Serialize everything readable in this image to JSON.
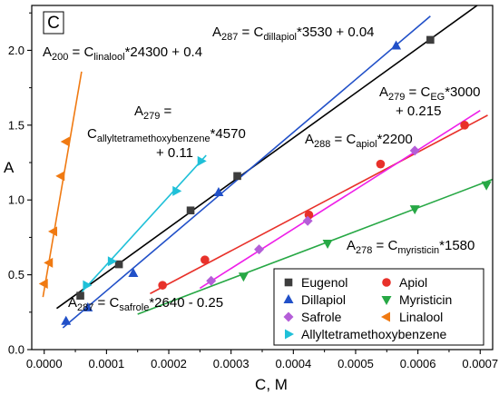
{
  "chart_data": {
    "type": "scatter",
    "panel_label": "C",
    "xlabel": "C, M",
    "ylabel": "A",
    "xlim": [
      -2e-05,
      0.00072
    ],
    "ylim": [
      0.0,
      2.3
    ],
    "x_ticks": [
      0.0,
      0.0001,
      0.0002,
      0.0003,
      0.0004,
      0.0005,
      0.0006,
      0.0007
    ],
    "x_tick_labels": [
      "0.0000",
      "0.0001",
      "0.0002",
      "0.0003",
      "0.0004",
      "0.0005",
      "0.0006",
      "0.0007"
    ],
    "y_ticks": [
      0.0,
      0.5,
      1.0,
      1.5,
      2.0
    ],
    "y_tick_labels": [
      "0.0",
      "0.5",
      "1.0",
      "1.5",
      "2.0"
    ],
    "grid": false,
    "legend_position": "bottom-right",
    "series": [
      {
        "name": "Eugenol",
        "marker": "square",
        "color": "#3d3d3d",
        "line_color": "#000000",
        "x": [
          5.8e-05,
          0.00012,
          0.000235,
          0.00031,
          0.00062
        ],
        "y": [
          0.36,
          0.57,
          0.93,
          1.16,
          2.07
        ],
        "fit": {
          "slope": 3000,
          "intercept": 0.215,
          "x_range": [
            2e-05,
            0.00072
          ]
        }
      },
      {
        "name": "Apiol",
        "marker": "circle",
        "color": "#e8312a",
        "line_color": "#e8312a",
        "x": [
          0.00019,
          0.000258,
          0.000425,
          0.00054,
          0.000675
        ],
        "y": [
          0.43,
          0.6,
          0.9,
          1.24,
          1.5
        ],
        "fit": {
          "slope": 2200,
          "intercept": 0.0,
          "x_range": [
            0.00017,
            0.000712
          ]
        }
      },
      {
        "name": "Dillapiol",
        "marker": "triangle-up",
        "color": "#2150c8",
        "line_color": "#2150c8",
        "x": [
          3.5e-05,
          7e-05,
          0.000143,
          0.00028,
          0.000565
        ],
        "y": [
          0.19,
          0.28,
          0.51,
          1.05,
          2.03
        ],
        "fit": {
          "slope": 3530,
          "intercept": 0.04,
          "x_range": [
            3e-05,
            0.00062
          ]
        }
      },
      {
        "name": "Myristicin",
        "marker": "triangle-down",
        "color": "#27a845",
        "line_color": "#27a845",
        "x": [
          0.00032,
          0.000455,
          0.000595,
          0.00071
        ],
        "y": [
          0.49,
          0.71,
          0.94,
          1.1
        ],
        "fit": {
          "slope": 1580,
          "intercept": 0.0,
          "x_range": [
            0.00015,
            0.00072
          ]
        }
      },
      {
        "name": "Safrole",
        "marker": "diamond",
        "color": "#b45ed8",
        "line_color": "#ee1fe8",
        "x": [
          0.000268,
          0.000345,
          0.000423,
          0.000595
        ],
        "y": [
          0.46,
          0.67,
          0.86,
          1.33
        ],
        "fit": {
          "slope": 2640,
          "intercept": -0.25,
          "x_range": [
            0.00025,
            0.0007
          ]
        }
      },
      {
        "name": "Linalool",
        "marker": "triangle-left",
        "color": "#f07a12",
        "line_color": "#f07a12",
        "x": [
          0.0,
          8e-06,
          1.5e-05,
          2.7e-05,
          3.5e-05
        ],
        "y": [
          0.44,
          0.58,
          0.79,
          1.16,
          1.39
        ],
        "fit": {
          "slope": 24300,
          "intercept": 0.4,
          "x_range": [
            -2e-06,
            6e-05
          ]
        }
      },
      {
        "name": "Allyltetramethoxybenzene",
        "marker": "triangle-right",
        "color": "#1fc0d8",
        "line_color": "#1fc0d8",
        "x": [
          6.8e-05,
          0.000108,
          0.000212,
          0.000252
        ],
        "y": [
          0.43,
          0.59,
          1.06,
          1.26
        ],
        "fit": {
          "slope": 4570,
          "intercept": 0.11,
          "x_range": [
            6e-05,
            0.00026
          ]
        }
      }
    ],
    "annotations": [
      {
        "id": "linalool",
        "lines": [
          [
            [
              "A"
            ],
            [
              "200",
              "sub"
            ],
            [
              " = C"
            ],
            [
              "linalool",
              "sub"
            ],
            [
              "*24300 + 0.4"
            ]
          ]
        ]
      },
      {
        "id": "dillapiol",
        "lines": [
          [
            [
              "A"
            ],
            [
              "287",
              "sub"
            ],
            [
              " = C"
            ],
            [
              "dillapiol",
              "sub"
            ],
            [
              "*3530 + 0.04"
            ]
          ]
        ]
      },
      {
        "id": "eg",
        "lines": [
          [
            [
              "A"
            ],
            [
              "279",
              "sub"
            ],
            [
              " = C"
            ],
            [
              "EG",
              "sub"
            ],
            [
              "*3000"
            ]
          ],
          [
            [
              "+ 0.215"
            ]
          ]
        ]
      },
      {
        "id": "allyl",
        "lines": [
          [
            [
              "A"
            ],
            [
              "279",
              "sub"
            ],
            [
              " ="
            ]
          ],
          [
            [
              "C"
            ],
            [
              "allyltetramethoxybenzene",
              "sub"
            ],
            [
              "*4570"
            ]
          ],
          [
            [
              "+ 0.11"
            ]
          ]
        ]
      },
      {
        "id": "apiol",
        "lines": [
          [
            [
              "A"
            ],
            [
              "288",
              "sub"
            ],
            [
              " = C"
            ],
            [
              "apiol",
              "sub"
            ],
            [
              "*2200"
            ]
          ]
        ]
      },
      {
        "id": "myristicin",
        "lines": [
          [
            [
              "A"
            ],
            [
              "278",
              "sub"
            ],
            [
              " = C"
            ],
            [
              "myristicin",
              "sub"
            ],
            [
              "*1580"
            ]
          ]
        ]
      },
      {
        "id": "safrole",
        "lines": [
          [
            [
              "A"
            ],
            [
              "287",
              "sub"
            ],
            [
              " = C"
            ],
            [
              "safrole",
              "sub"
            ],
            [
              "*2640 - 0.25"
            ]
          ]
        ]
      }
    ]
  }
}
